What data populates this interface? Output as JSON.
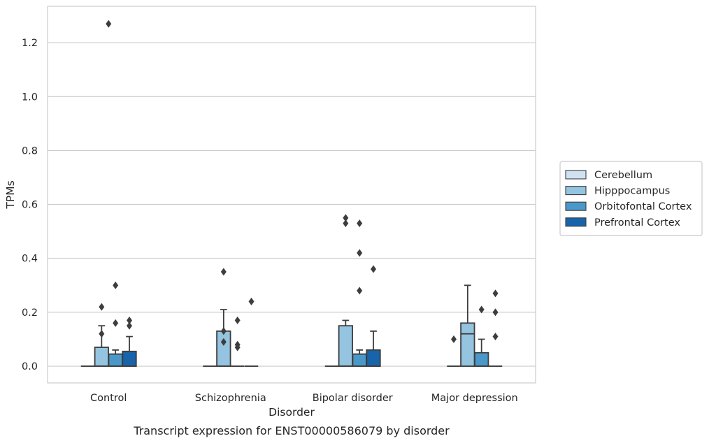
{
  "chart_data": {
    "type": "box",
    "title": "",
    "caption": "Transcript expression for ENST00000586079 by disorder",
    "xlabel": "Disorder",
    "ylabel": "TPMs",
    "ylim": [
      -0.062,
      1.335
    ],
    "yticks": [
      0.0,
      0.2,
      0.4,
      0.6,
      0.8,
      1.0,
      1.2
    ],
    "ytick_labels": [
      "0.0",
      "0.2",
      "0.4",
      "0.6",
      "0.8",
      "1.0",
      "1.2"
    ],
    "grid": "horizontal",
    "legend_position": "right",
    "categories": [
      "Control",
      "Schizophrenia",
      "Bipolar disorder",
      "Major depression"
    ],
    "series": [
      {
        "name": "Cerebellum",
        "color": "#d0e1f2",
        "boxes": [
          {
            "min": 0,
            "q1": 0,
            "median": 0,
            "q3": 0,
            "max": 0,
            "outliers": []
          },
          {
            "min": 0,
            "q1": 0,
            "median": 0,
            "q3": 0,
            "max": 0,
            "outliers": []
          },
          {
            "min": 0,
            "q1": 0,
            "median": 0,
            "q3": 0,
            "max": 0,
            "outliers": []
          },
          {
            "min": 0,
            "q1": 0,
            "median": 0,
            "q3": 0,
            "max": 0,
            "outliers": [
              0.1
            ]
          }
        ]
      },
      {
        "name": "Hipppocampus",
        "color": "#94c4df",
        "boxes": [
          {
            "min": 0,
            "q1": 0,
            "median": 0,
            "q3": 0.07,
            "max": 0.15,
            "outliers": [
              0.12,
              0.22
            ]
          },
          {
            "min": 0,
            "q1": 0,
            "median": 0,
            "q3": 0.13,
            "max": 0.21,
            "outliers": [
              0.35,
              0.13,
              0.09
            ]
          },
          {
            "min": 0,
            "q1": 0,
            "median": 0,
            "q3": 0.15,
            "max": 0.17,
            "outliers": [
              0.55,
              0.53
            ]
          },
          {
            "min": 0,
            "q1": 0,
            "median": 0.12,
            "q3": 0.16,
            "max": 0.3,
            "outliers": []
          }
        ]
      },
      {
        "name": "Orbitofontal Cortex",
        "color": "#4a98c9",
        "boxes": [
          {
            "min": 0,
            "q1": 0,
            "median": 0,
            "q3": 0.045,
            "max": 0.06,
            "outliers": [
              0.3,
              0.16
            ]
          },
          {
            "min": 0,
            "q1": 0,
            "median": 0,
            "q3": 0,
            "max": 0,
            "outliers": [
              0.17,
              0.08,
              0.07
            ]
          },
          {
            "min": 0,
            "q1": 0,
            "median": 0,
            "q3": 0.045,
            "max": 0.06,
            "outliers": [
              0.53,
              0.42,
              0.28
            ]
          },
          {
            "min": 0,
            "q1": 0,
            "median": 0,
            "q3": 0.05,
            "max": 0.1,
            "outliers": [
              0.21
            ]
          }
        ]
      },
      {
        "name": "Prefrontal Cortex",
        "color": "#1764ab",
        "boxes": [
          {
            "min": 0,
            "q1": 0,
            "median": 0,
            "q3": 0.055,
            "max": 0.11,
            "outliers": [
              0.17,
              0.15
            ]
          },
          {
            "min": 0,
            "q1": 0,
            "median": 0,
            "q3": 0,
            "max": 0,
            "outliers": [
              0.24
            ]
          },
          {
            "min": 0,
            "q1": 0,
            "median": 0,
            "q3": 0.06,
            "max": 0.13,
            "outliers": [
              0.36
            ]
          },
          {
            "min": 0,
            "q1": 0,
            "median": 0,
            "q3": 0,
            "max": 0,
            "outliers": [
              0.27,
              0.2,
              0.11
            ]
          }
        ]
      }
    ],
    "extra_outliers": [
      {
        "category": 0,
        "series": 1,
        "value": 1.27
      }
    ]
  }
}
